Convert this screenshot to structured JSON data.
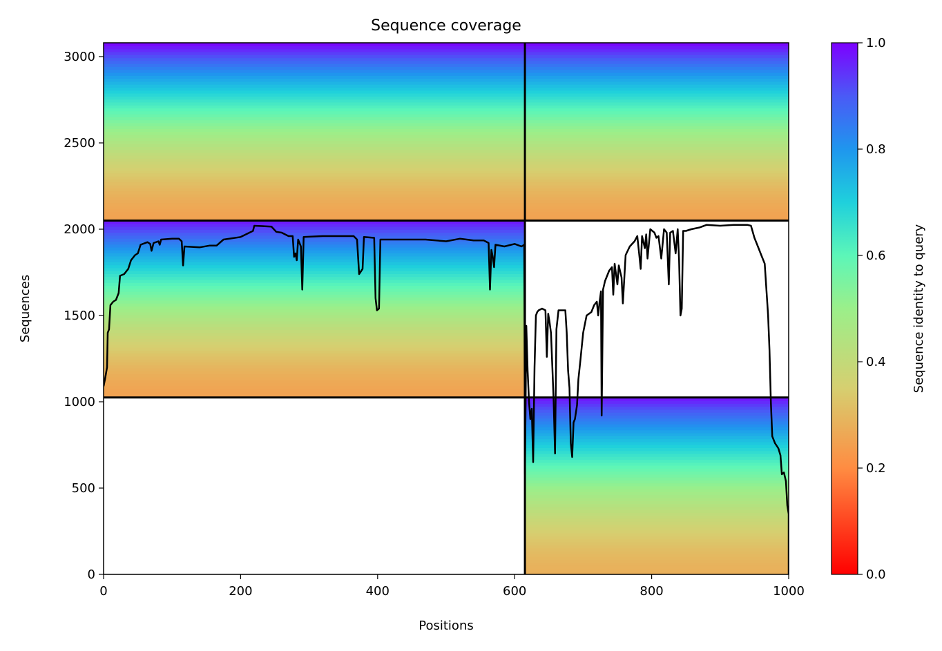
{
  "chart_data": {
    "type": "heatmap",
    "title": "Sequence coverage",
    "xlabel": "Positions",
    "ylabel": "Sequences",
    "xlim": [
      0,
      1000
    ],
    "ylim": [
      0,
      3080
    ],
    "x_ticks": [
      0,
      200,
      400,
      600,
      800,
      1000
    ],
    "y_ticks": [
      0,
      500,
      1000,
      1500,
      2000,
      2500,
      3000
    ],
    "grid": false,
    "colormap": "rainbow_r",
    "colorbar": {
      "label": "Sequence identity to query",
      "range": [
        0.0,
        1.0
      ],
      "ticks": [
        0.0,
        0.2,
        0.4,
        0.6,
        0.8,
        1.0
      ],
      "tick_labels": [
        "0.0",
        "0.2",
        "0.4",
        "0.6",
        "0.8",
        "1.0"
      ]
    },
    "chain_boundaries": {
      "positions": [
        615
      ],
      "sequence_blocks": [
        0,
        1025,
        2050
      ]
    },
    "blocks": [
      {
        "x_range": [
          615,
          1000
        ],
        "y_range": [
          0,
          1025
        ],
        "min_identity": 0.28,
        "max_identity": 0.98
      },
      {
        "x_range": [
          0,
          615
        ],
        "y_range": [
          1025,
          2050
        ],
        "min_identity": 0.25,
        "max_identity": 0.98
      },
      {
        "x_range": [
          0,
          615
        ],
        "y_range": [
          2050,
          3080
        ],
        "min_identity": 0.25,
        "max_identity": 1.0
      },
      {
        "x_range": [
          615,
          1000
        ],
        "y_range": [
          2050,
          3080
        ],
        "min_identity": 0.25,
        "max_identity": 1.0
      }
    ],
    "series": [
      {
        "type": "line",
        "color": "#000000",
        "points": [
          [
            0,
            1090
          ],
          [
            2,
            1130
          ],
          [
            5,
            1200
          ],
          [
            6,
            1400
          ],
          [
            8,
            1420
          ],
          [
            10,
            1560
          ],
          [
            14,
            1580
          ],
          [
            18,
            1590
          ],
          [
            22,
            1630
          ],
          [
            24,
            1730
          ],
          [
            30,
            1740
          ],
          [
            36,
            1770
          ],
          [
            40,
            1820
          ],
          [
            46,
            1850
          ],
          [
            50,
            1860
          ],
          [
            54,
            1910
          ],
          [
            64,
            1925
          ],
          [
            68,
            1915
          ],
          [
            70,
            1875
          ],
          [
            73,
            1920
          ],
          [
            80,
            1930
          ],
          [
            82,
            1910
          ],
          [
            84,
            1940
          ],
          [
            100,
            1945
          ],
          [
            110,
            1945
          ],
          [
            114,
            1930
          ],
          [
            116,
            1790
          ],
          [
            118,
            1900
          ],
          [
            140,
            1895
          ],
          [
            155,
            1905
          ],
          [
            165,
            1905
          ],
          [
            175,
            1940
          ],
          [
            200,
            1955
          ],
          [
            218,
            1990
          ],
          [
            220,
            2020
          ],
          [
            245,
            2015
          ],
          [
            252,
            1985
          ],
          [
            260,
            1980
          ],
          [
            270,
            1960
          ],
          [
            276,
            1960
          ],
          [
            278,
            1840
          ],
          [
            280,
            1860
          ],
          [
            282,
            1820
          ],
          [
            284,
            1940
          ],
          [
            288,
            1900
          ],
          [
            290,
            1650
          ],
          [
            292,
            1955
          ],
          [
            320,
            1960
          ],
          [
            365,
            1960
          ],
          [
            370,
            1940
          ],
          [
            373,
            1740
          ],
          [
            378,
            1770
          ],
          [
            380,
            1955
          ],
          [
            395,
            1950
          ],
          [
            397,
            1600
          ],
          [
            399,
            1530
          ],
          [
            402,
            1540
          ],
          [
            404,
            1940
          ],
          [
            430,
            1940
          ],
          [
            470,
            1940
          ],
          [
            500,
            1930
          ],
          [
            520,
            1945
          ],
          [
            540,
            1935
          ],
          [
            555,
            1935
          ],
          [
            562,
            1920
          ],
          [
            564,
            1650
          ],
          [
            566,
            1880
          ],
          [
            568,
            1840
          ],
          [
            570,
            1780
          ],
          [
            572,
            1910
          ],
          [
            585,
            1900
          ],
          [
            600,
            1915
          ],
          [
            610,
            1900
          ],
          [
            614,
            1910
          ],
          [
            615,
            580
          ],
          [
            617,
            1440
          ],
          [
            619,
            1180
          ],
          [
            621,
            1000
          ],
          [
            623,
            900
          ],
          [
            625,
            960
          ],
          [
            627,
            650
          ],
          [
            629,
            1200
          ],
          [
            631,
            1500
          ],
          [
            633,
            1520
          ],
          [
            635,
            1530
          ],
          [
            640,
            1540
          ],
          [
            645,
            1530
          ],
          [
            647,
            1260
          ],
          [
            649,
            1510
          ],
          [
            651,
            1460
          ],
          [
            653,
            1400
          ],
          [
            655,
            1200
          ],
          [
            657,
            1000
          ],
          [
            659,
            700
          ],
          [
            661,
            1420
          ],
          [
            664,
            1530
          ],
          [
            674,
            1530
          ],
          [
            676,
            1400
          ],
          [
            678,
            1180
          ],
          [
            680,
            1080
          ],
          [
            682,
            760
          ],
          [
            684,
            680
          ],
          [
            686,
            880
          ],
          [
            688,
            900
          ],
          [
            691,
            980
          ],
          [
            693,
            1130
          ],
          [
            696,
            1240
          ],
          [
            700,
            1400
          ],
          [
            705,
            1500
          ],
          [
            712,
            1520
          ],
          [
            716,
            1560
          ],
          [
            720,
            1580
          ],
          [
            722,
            1500
          ],
          [
            724,
            1580
          ],
          [
            726,
            1640
          ],
          [
            727,
            920
          ],
          [
            729,
            1650
          ],
          [
            732,
            1700
          ],
          [
            738,
            1760
          ],
          [
            742,
            1780
          ],
          [
            744,
            1620
          ],
          [
            746,
            1800
          ],
          [
            750,
            1680
          ],
          [
            752,
            1790
          ],
          [
            756,
            1720
          ],
          [
            758,
            1570
          ],
          [
            762,
            1850
          ],
          [
            768,
            1900
          ],
          [
            775,
            1930
          ],
          [
            779,
            1960
          ],
          [
            782,
            1850
          ],
          [
            784,
            1770
          ],
          [
            786,
            1960
          ],
          [
            790,
            1890
          ],
          [
            792,
            1970
          ],
          [
            794,
            1830
          ],
          [
            798,
            2000
          ],
          [
            804,
            1980
          ],
          [
            807,
            1950
          ],
          [
            810,
            1960
          ],
          [
            814,
            1830
          ],
          [
            818,
            2000
          ],
          [
            822,
            1980
          ],
          [
            825,
            1680
          ],
          [
            827,
            1980
          ],
          [
            831,
            1990
          ],
          [
            835,
            1860
          ],
          [
            838,
            2000
          ],
          [
            840,
            1820
          ],
          [
            842,
            1500
          ],
          [
            844,
            1540
          ],
          [
            846,
            1990
          ],
          [
            850,
            1990
          ],
          [
            858,
            2000
          ],
          [
            870,
            2010
          ],
          [
            880,
            2025
          ],
          [
            900,
            2020
          ],
          [
            920,
            2025
          ],
          [
            940,
            2025
          ],
          [
            945,
            2020
          ],
          [
            950,
            1950
          ],
          [
            955,
            1900
          ],
          [
            960,
            1850
          ],
          [
            965,
            1800
          ],
          [
            970,
            1500
          ],
          [
            972,
            1300
          ],
          [
            974,
            1000
          ],
          [
            976,
            800
          ],
          [
            980,
            760
          ],
          [
            985,
            730
          ],
          [
            988,
            690
          ],
          [
            990,
            580
          ],
          [
            993,
            590
          ],
          [
            996,
            540
          ],
          [
            998,
            400
          ],
          [
            1000,
            350
          ],
          [
            1000,
            0
          ]
        ]
      }
    ]
  }
}
